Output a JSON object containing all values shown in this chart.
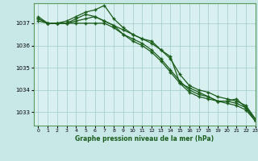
{
  "title": "Graphe pression niveau de la mer (hPa)",
  "background_color": "#c8e8e8",
  "plot_bg_color": "#d8f0f0",
  "grid_color": "#a0c8c8",
  "line_color": "#1a5c1a",
  "xlim": [
    -0.5,
    23
  ],
  "ylim": [
    1032.4,
    1037.9
  ],
  "yticks": [
    1033,
    1034,
    1035,
    1036,
    1037
  ],
  "xticks": [
    0,
    1,
    2,
    3,
    4,
    5,
    6,
    7,
    8,
    9,
    10,
    11,
    12,
    13,
    14,
    15,
    16,
    17,
    18,
    19,
    20,
    21,
    22,
    23
  ],
  "series": [
    [
      1037.2,
      1037.0,
      1037.0,
      1037.1,
      1037.3,
      1037.5,
      1037.6,
      1037.8,
      1037.2,
      1036.8,
      1036.5,
      1036.3,
      1036.2,
      1035.8,
      1035.5,
      1034.3,
      1034.1,
      1033.9,
      1033.7,
      1033.5,
      1033.5,
      1033.6,
      1033.2,
      1032.6
    ],
    [
      1037.1,
      1037.0,
      1037.0,
      1037.0,
      1037.1,
      1037.2,
      1037.3,
      1037.1,
      1036.9,
      1036.7,
      1036.5,
      1036.3,
      1036.1,
      1035.8,
      1035.4,
      1034.7,
      1034.2,
      1034.0,
      1033.9,
      1033.7,
      1033.6,
      1033.5,
      1033.3,
      1032.7
    ],
    [
      1037.2,
      1037.0,
      1037.0,
      1037.0,
      1037.2,
      1037.4,
      1037.3,
      1037.1,
      1036.9,
      1036.5,
      1036.3,
      1036.1,
      1035.8,
      1035.4,
      1034.9,
      1034.4,
      1034.0,
      1033.8,
      1033.7,
      1033.5,
      1033.5,
      1033.4,
      1033.2,
      1032.7
    ],
    [
      1037.3,
      1037.0,
      1037.0,
      1037.0,
      1037.0,
      1037.0,
      1037.0,
      1037.0,
      1036.8,
      1036.5,
      1036.2,
      1036.0,
      1035.7,
      1035.3,
      1034.8,
      1034.3,
      1033.9,
      1033.7,
      1033.6,
      1033.5,
      1033.4,
      1033.3,
      1033.1,
      1032.6
    ]
  ]
}
